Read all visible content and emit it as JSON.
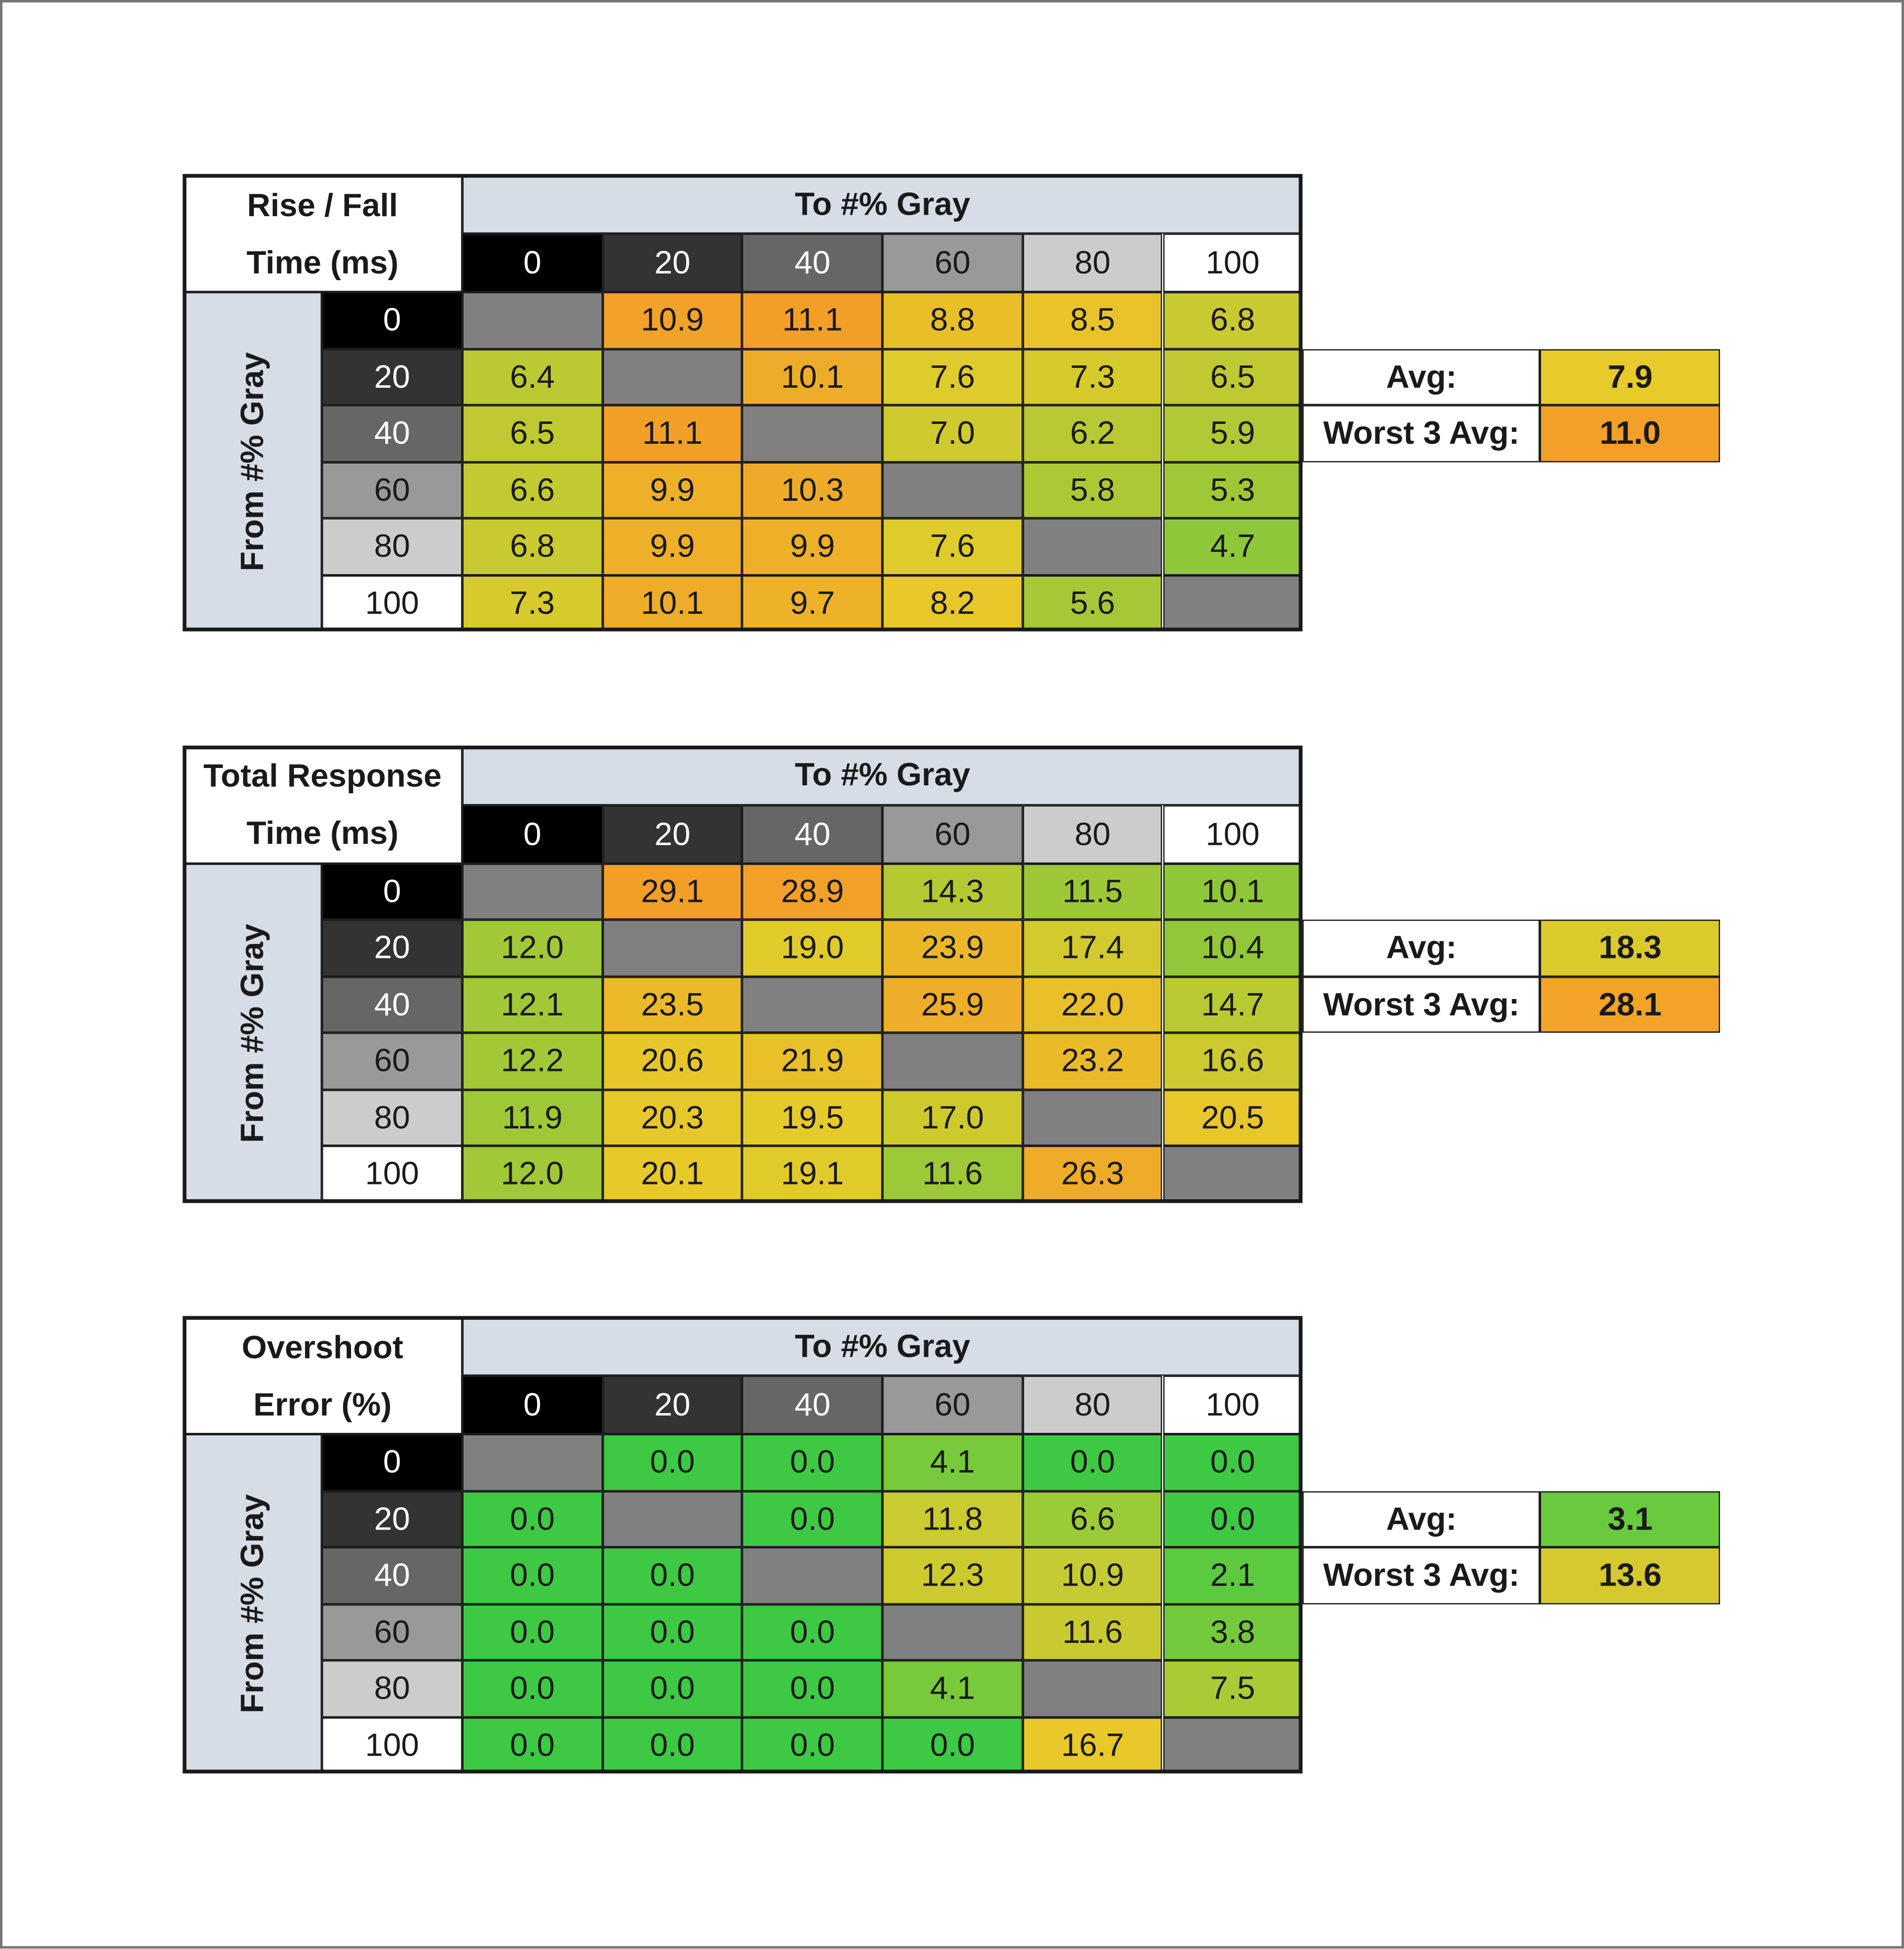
{
  "tables": [
    {
      "title_lines": [
        "Rise / Fall",
        "Time (ms)"
      ],
      "col_header": "To #% Gray",
      "row_header": "From #% Gray",
      "columns": [
        "0",
        "20",
        "40",
        "60",
        "80",
        "100"
      ],
      "rows": [
        "0",
        "20",
        "40",
        "60",
        "80",
        "100"
      ],
      "cells": [
        [
          null,
          "10.9",
          "11.1",
          "8.8",
          "8.5",
          "6.8"
        ],
        [
          "6.4",
          null,
          "10.1",
          "7.6",
          "7.3",
          "6.5"
        ],
        [
          "6.5",
          "11.1",
          null,
          "7.0",
          "6.2",
          "5.9"
        ],
        [
          "6.6",
          "9.9",
          "10.3",
          null,
          "5.8",
          "5.3"
        ],
        [
          "6.8",
          "9.9",
          "9.9",
          "7.6",
          null,
          "4.7"
        ],
        [
          "7.3",
          "10.1",
          "9.7",
          "8.2",
          "5.6",
          null
        ]
      ],
      "avg_label": "Avg:",
      "avg": "7.9",
      "worst_label": "Worst 3 Avg:",
      "worst": "11.0",
      "scale_colors": [
        "#8fc73a",
        "#e6cb2a",
        "#f29f28"
      ]
    },
    {
      "title_lines": [
        "Total Response",
        "Time (ms)"
      ],
      "col_header": "To #% Gray",
      "row_header": "From #% Gray",
      "columns": [
        "0",
        "20",
        "40",
        "60",
        "80",
        "100"
      ],
      "rows": [
        "0",
        "20",
        "40",
        "60",
        "80",
        "100"
      ],
      "cells": [
        [
          null,
          "29.1",
          "28.9",
          "14.3",
          "11.5",
          "10.1"
        ],
        [
          "12.0",
          null,
          "19.0",
          "23.9",
          "17.4",
          "10.4"
        ],
        [
          "12.1",
          "23.5",
          null,
          "25.9",
          "22.0",
          "14.7"
        ],
        [
          "12.2",
          "20.6",
          "21.9",
          null,
          "23.2",
          "16.6"
        ],
        [
          "11.9",
          "20.3",
          "19.5",
          "17.0",
          null,
          "20.5"
        ],
        [
          "12.0",
          "20.1",
          "19.1",
          "11.6",
          "26.3",
          null
        ]
      ],
      "avg_label": "Avg:",
      "avg": "18.3",
      "worst_label": "Worst 3 Avg:",
      "worst": "28.1",
      "scale_colors": [
        "#8fc73a",
        "#e6cb2a",
        "#f29f28"
      ]
    },
    {
      "title_lines": [
        "Overshoot",
        "Error (%)"
      ],
      "col_header": "To #% Gray",
      "row_header": "From #% Gray",
      "columns": [
        "0",
        "20",
        "40",
        "60",
        "80",
        "100"
      ],
      "rows": [
        "0",
        "20",
        "40",
        "60",
        "80",
        "100"
      ],
      "cells": [
        [
          null,
          "0.0",
          "0.0",
          "4.1",
          "0.0",
          "0.0"
        ],
        [
          "0.0",
          null,
          "0.0",
          "11.8",
          "6.6",
          "0.0"
        ],
        [
          "0.0",
          "0.0",
          null,
          "12.3",
          "10.9",
          "2.1"
        ],
        [
          "0.0",
          "0.0",
          "0.0",
          null,
          "11.6",
          "3.8"
        ],
        [
          "0.0",
          "0.0",
          "0.0",
          "4.1",
          null,
          "7.5"
        ],
        [
          "0.0",
          "0.0",
          "0.0",
          "0.0",
          "16.7",
          null
        ]
      ],
      "avg_label": "Avg:",
      "avg": "3.1",
      "worst_label": "Worst 3 Avg:",
      "worst": "13.6",
      "scale_colors": [
        "#3dc943",
        "#b5cc35",
        "#e8c82b"
      ]
    }
  ]
}
